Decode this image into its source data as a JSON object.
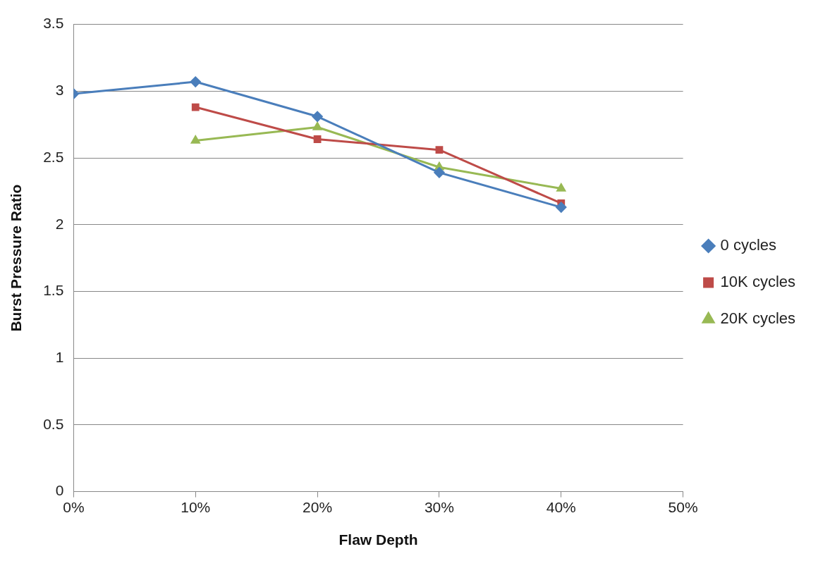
{
  "chart_data": {
    "type": "line",
    "xlabel": "Flaw Depth",
    "ylabel": "Burst Pressure Ratio",
    "x": [
      0,
      10,
      20,
      30,
      40
    ],
    "series": [
      {
        "name": "0 cycles",
        "color": "#4a7ebb",
        "marker": "diamond",
        "values": [
          2.98,
          3.07,
          2.81,
          2.39,
          2.13
        ]
      },
      {
        "name": "10K cycles",
        "color": "#be4b48",
        "marker": "square",
        "values": [
          null,
          2.88,
          2.64,
          2.56,
          2.16
        ]
      },
      {
        "name": "20K cycles",
        "color": "#98b954",
        "marker": "triangle",
        "values": [
          null,
          2.63,
          2.73,
          2.43,
          2.27
        ]
      }
    ],
    "xlim": [
      0,
      50
    ],
    "xticks": [
      {
        "value": 0,
        "label": "0%"
      },
      {
        "value": 10,
        "label": "10%"
      },
      {
        "value": 20,
        "label": "20%"
      },
      {
        "value": 30,
        "label": "30%"
      },
      {
        "value": 40,
        "label": "40%"
      },
      {
        "value": 50,
        "label": "50%"
      }
    ],
    "ylim": [
      0,
      3.5
    ],
    "yticks": [
      0,
      0.5,
      1,
      1.5,
      2,
      2.5,
      3,
      3.5
    ],
    "grid": "y",
    "legend": "right"
  }
}
